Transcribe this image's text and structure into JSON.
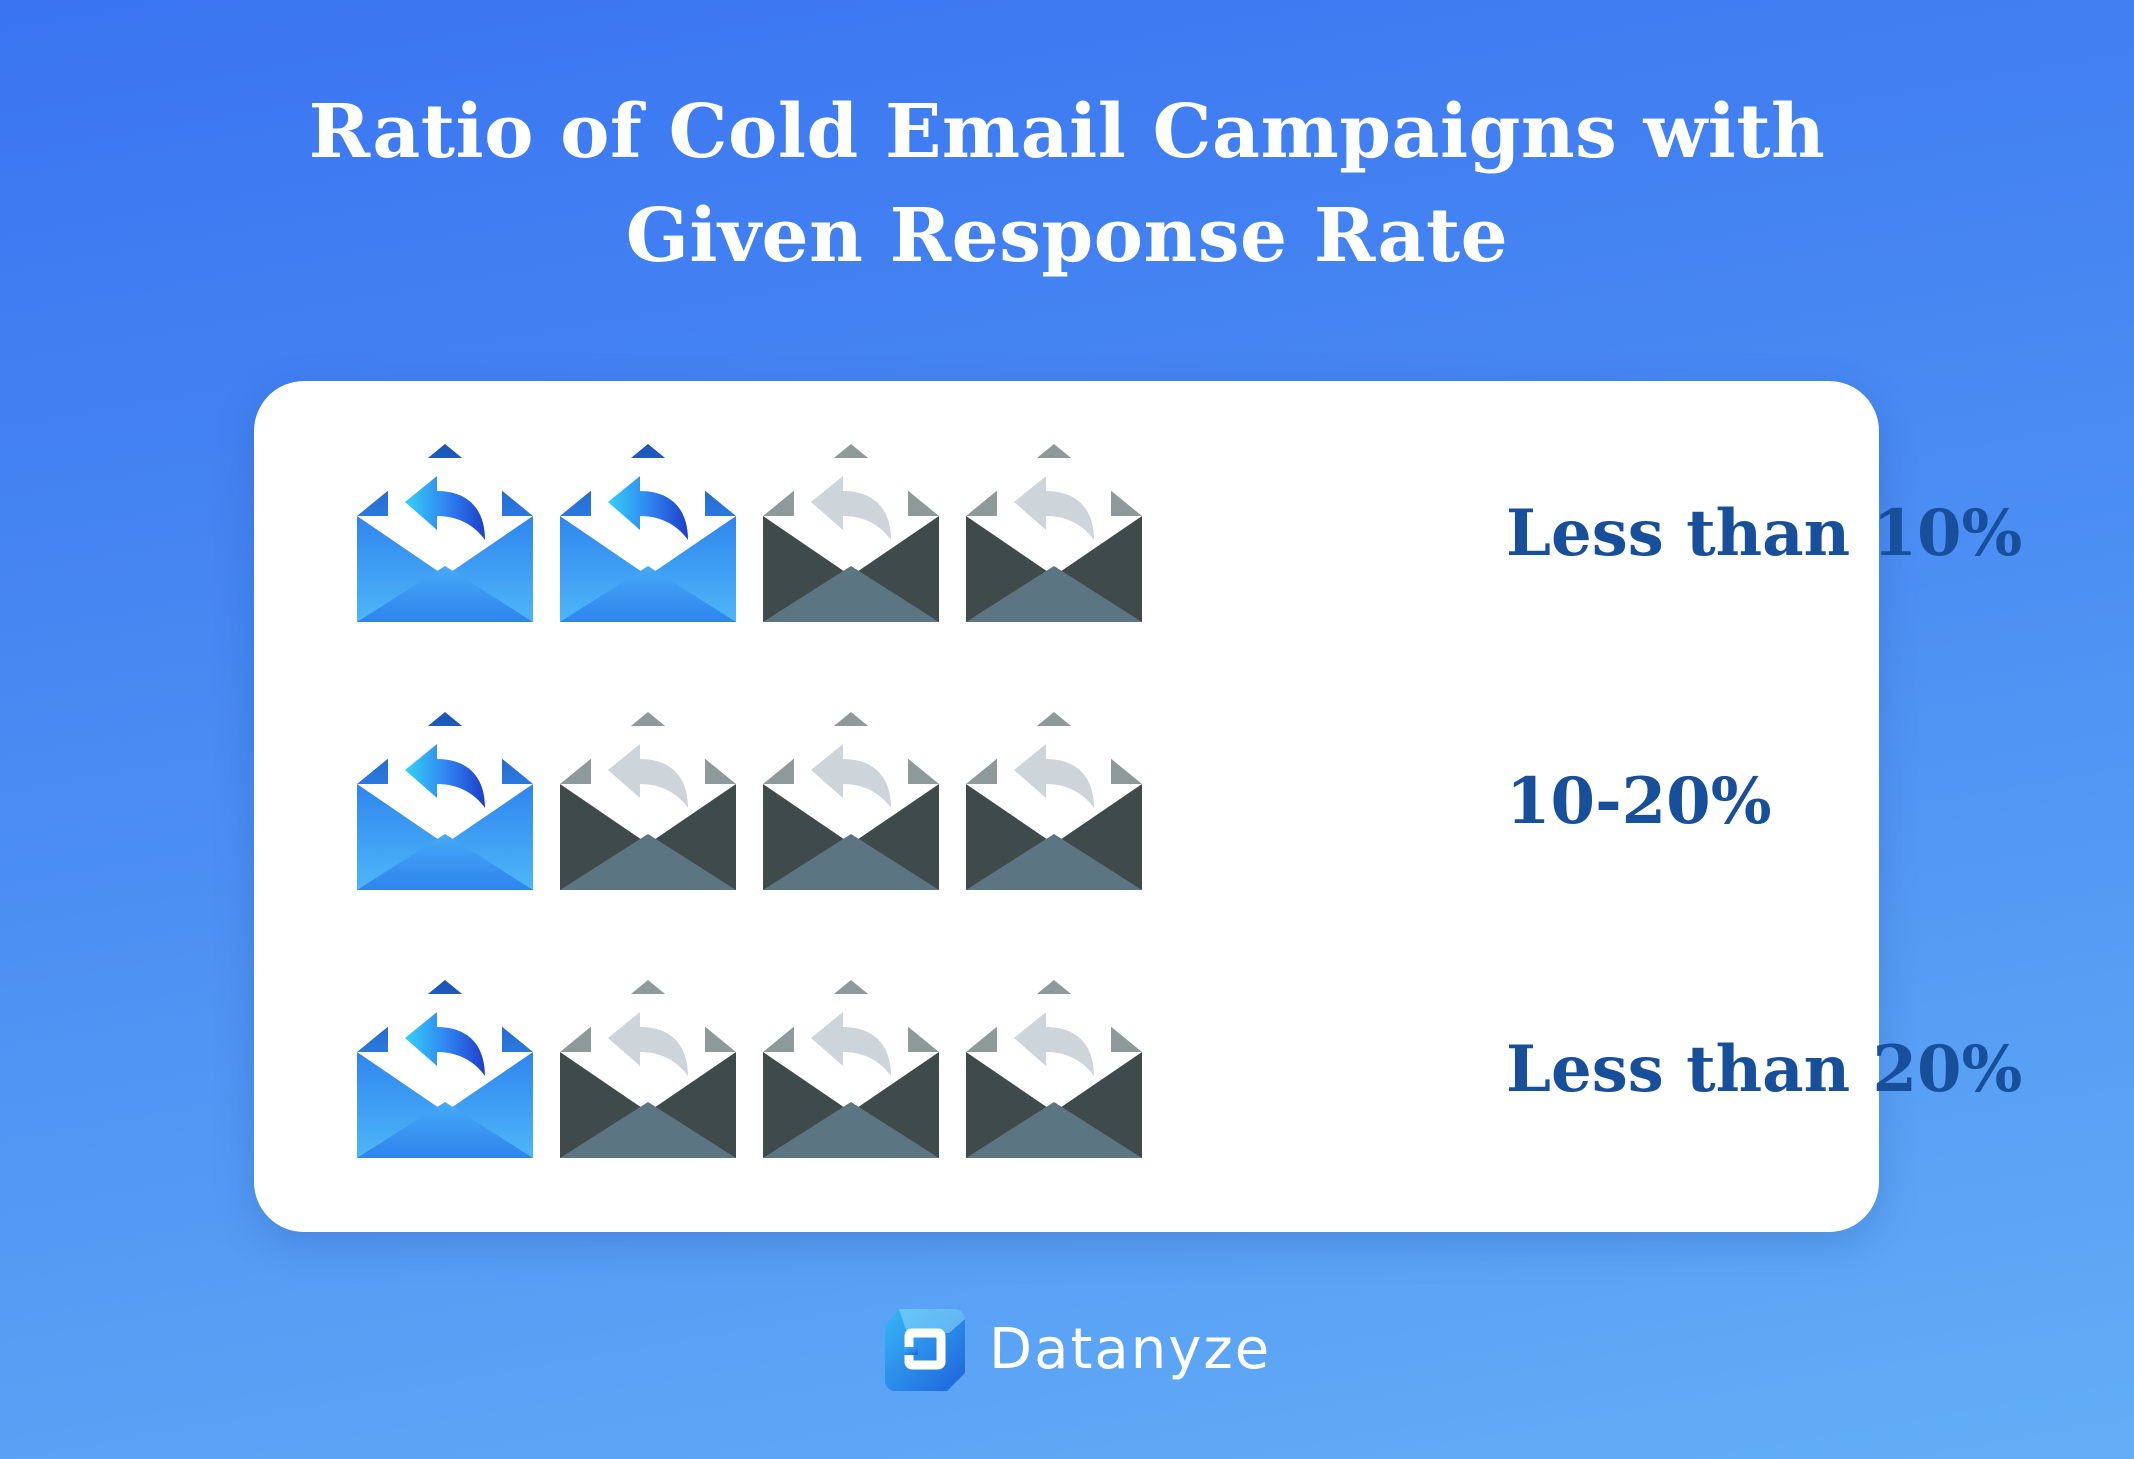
{
  "title_lines": [
    "Ratio of Cold Email Campaigns with",
    "Given Response Rate"
  ],
  "brand": {
    "name": "Datanyze",
    "logo_icon": "datanyze-logo-icon"
  },
  "colors": {
    "active_envelope": "#3d9df3",
    "inactive_envelope": "#445150",
    "label": "#174f9b",
    "card": "#ffffff"
  },
  "chart_data": {
    "type": "pictograph",
    "icon": "open-envelope-reply-icon",
    "icons_per_row": 4,
    "rows": [
      {
        "label": "Less than 10%",
        "highlighted": 2
      },
      {
        "label": "10-20%",
        "highlighted": 1
      },
      {
        "label": "Less than 20%",
        "highlighted": 1
      }
    ]
  }
}
